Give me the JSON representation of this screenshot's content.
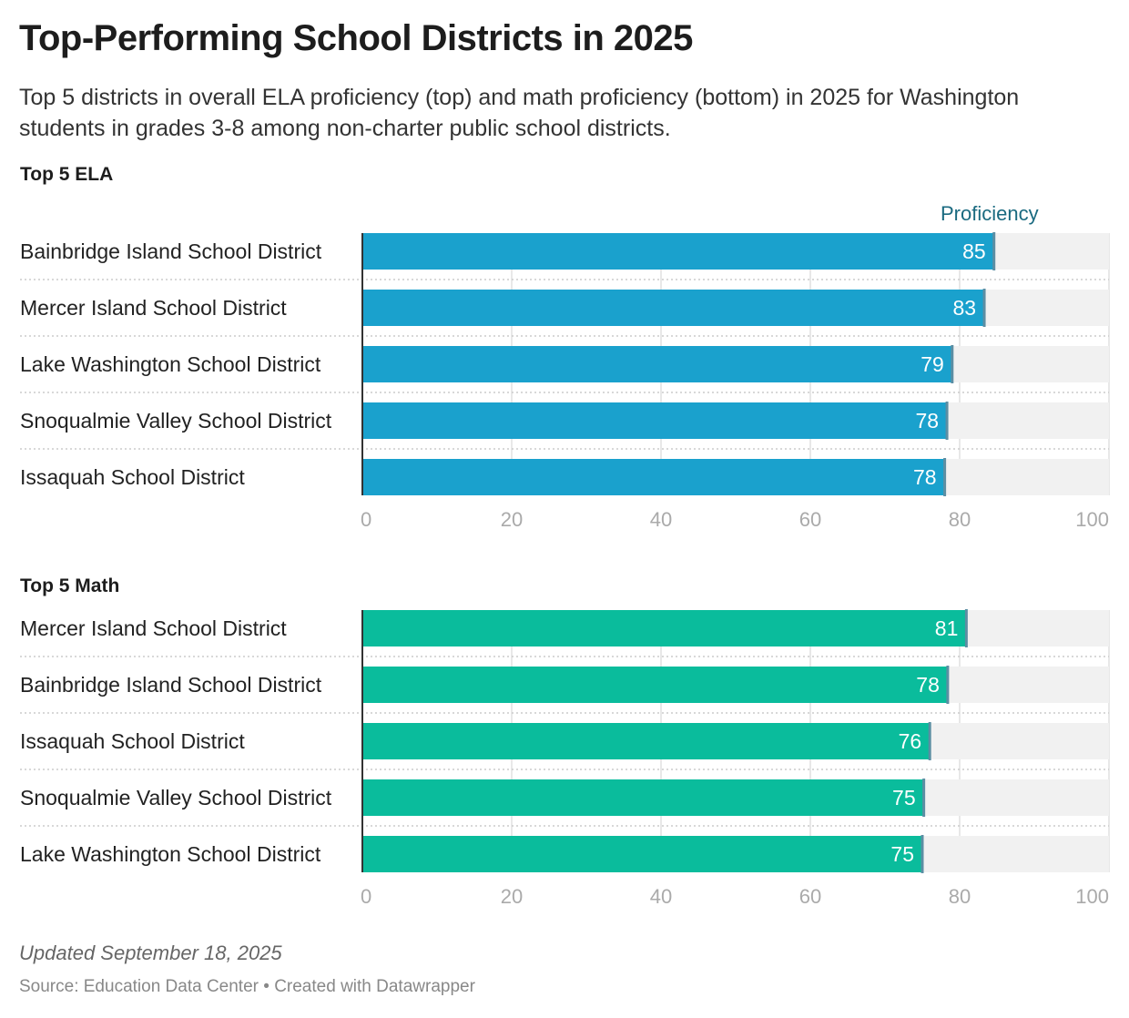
{
  "title": "Top-Performing School Districts in 2025",
  "description": "Top 5 districts in overall ELA proficiency (top) and math proficiency (bottom) in 2025 for Washington students in grades 3-8 among non-charter public school districts.",
  "legend_label": "Proficiency",
  "footer": {
    "updated": "Updated September 18, 2025",
    "source": "Source: Education Data Center • Created with Datawrapper"
  },
  "colors": {
    "ela": "#1aa1cd",
    "math": "#0abc9c",
    "track": "#f1f1f1",
    "marker": "#5c8ea3",
    "axis": "#aaaaaa"
  },
  "chart_data": [
    {
      "type": "bar",
      "title": "Top 5 ELA",
      "xlim": [
        0,
        100
      ],
      "ticks": [
        "0",
        "20",
        "40",
        "60",
        "80",
        "100"
      ],
      "categories": [
        "Bainbridge Island School District",
        "Mercer Island School District",
        "Lake Washington School District",
        "Snoqualmie Valley School District",
        "Issaquah School District"
      ],
      "values": [
        84.6,
        83.3,
        79.0,
        78.3,
        78.0
      ],
      "labels": [
        "85",
        "83",
        "79",
        "78",
        "78"
      ]
    },
    {
      "type": "bar",
      "title": "Top 5 Math",
      "xlim": [
        0,
        100
      ],
      "ticks": [
        "0",
        "20",
        "40",
        "60",
        "80",
        "100"
      ],
      "categories": [
        "Mercer Island School District",
        "Bainbridge Island School District",
        "Issaquah School District",
        "Snoqualmie Valley School District",
        "Lake Washington School District"
      ],
      "values": [
        80.9,
        78.4,
        76.0,
        75.2,
        75.0
      ],
      "labels": [
        "81",
        "78",
        "76",
        "75",
        "75"
      ]
    }
  ]
}
